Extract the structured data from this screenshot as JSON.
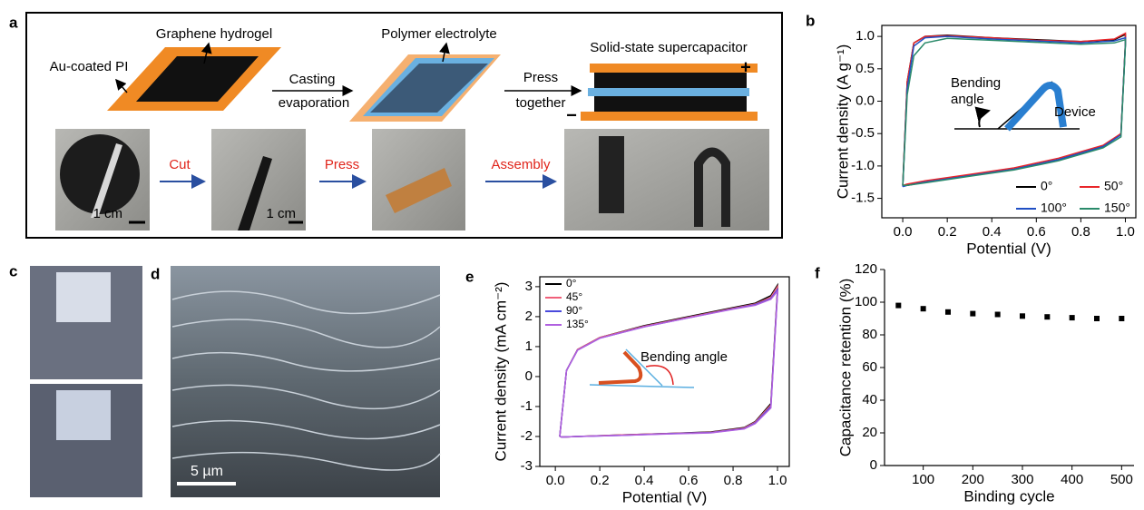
{
  "panel_labels": [
    "a",
    "b",
    "c",
    "d",
    "e",
    "f"
  ],
  "schematic": {
    "layers": [
      "Graphene hydrogel",
      "Au-coated PI",
      "Polymer electrolyte",
      "Solid-state supercapacitor"
    ],
    "steps": [
      "Casting",
      "evaporation",
      "Press",
      "together"
    ],
    "terminals": [
      "+",
      "−"
    ],
    "photo_steps": [
      "Cut",
      "Press",
      "Assembly"
    ],
    "scale_bars": [
      "1 cm",
      "1 cm"
    ]
  },
  "sem_scale_bar": "5 µm",
  "chart_data": [
    {
      "type": "line",
      "xlabel": "Potential (V)",
      "ylabel": "Current density (A g⁻¹)",
      "annotations": [
        "Bending",
        "angle",
        "Device"
      ],
      "x": [
        0,
        0.02,
        0.05,
        0.1,
        0.2,
        0.4,
        0.6,
        0.8,
        0.95,
        1.0,
        1.0,
        0.98,
        0.9,
        0.7,
        0.5,
        0.3,
        0.1,
        0.02,
        0
      ],
      "series": [
        {
          "name": "0°",
          "color": "#000000",
          "values": [
            -1.3,
            0.3,
            0.9,
            1.0,
            1.02,
            0.98,
            0.95,
            0.92,
            0.95,
            1.03,
            0.9,
            -0.5,
            -0.7,
            -0.9,
            -1.05,
            -1.15,
            -1.25,
            -1.3,
            -1.3
          ]
        },
        {
          "name": "50°",
          "color": "#e8262a",
          "values": [
            -1.3,
            0.3,
            0.9,
            1.0,
            1.01,
            0.98,
            0.94,
            0.92,
            0.96,
            1.05,
            0.9,
            -0.5,
            -0.68,
            -0.88,
            -1.03,
            -1.13,
            -1.23,
            -1.28,
            -1.3
          ]
        },
        {
          "name": "100°",
          "color": "#1f4fc4",
          "values": [
            -1.32,
            0.2,
            0.85,
            0.98,
            1.0,
            0.96,
            0.93,
            0.9,
            0.93,
            0.98,
            0.88,
            -0.52,
            -0.7,
            -0.9,
            -1.05,
            -1.15,
            -1.25,
            -1.3,
            -1.32
          ]
        },
        {
          "name": "150°",
          "color": "#2a8a6a",
          "values": [
            -1.3,
            0.1,
            0.7,
            0.9,
            0.97,
            0.94,
            0.91,
            0.88,
            0.9,
            0.95,
            0.86,
            -0.55,
            -0.72,
            -0.92,
            -1.06,
            -1.16,
            -1.26,
            -1.3,
            -1.3
          ]
        }
      ],
      "xlim": [
        -0.094,
        1.047
      ],
      "ylim": [
        -1.8,
        1.17
      ],
      "xticks": [
        {
          "value": 0,
          "label": "0.0"
        },
        0.2,
        0.4,
        0.6,
        0.8,
        {
          "value": 1,
          "label": "1.0"
        }
      ],
      "yticks": [
        -1.5,
        {
          "value": -1,
          "label": "-1.0"
        },
        -0.5,
        {
          "value": 0,
          "label": "0.0"
        },
        0.5,
        {
          "value": 1,
          "label": "1.0"
        }
      ],
      "frame": true,
      "legend": "lower right"
    },
    {
      "type": "line",
      "xlabel": "Potential (V)",
      "ylabel": "Current density (mA cm⁻²)",
      "annotations": [
        "Bending angle"
      ],
      "x": [
        0.02,
        0.05,
        0.1,
        0.2,
        0.4,
        0.6,
        0.8,
        0.9,
        0.97,
        1.0,
        1.0,
        0.97,
        0.9,
        0.85,
        0.7,
        0.5,
        0.3,
        0.1,
        0.03,
        0.02
      ],
      "series": [
        {
          "name": "0°",
          "color": "#000000",
          "values": [
            -2.0,
            0.2,
            0.9,
            1.3,
            1.7,
            2.0,
            2.3,
            2.45,
            2.7,
            3.05,
            2.9,
            -0.9,
            -1.5,
            -1.7,
            -1.85,
            -1.9,
            -1.95,
            -2.0,
            -2.02,
            -2.0
          ]
        },
        {
          "name": "45°",
          "color": "#f0607a",
          "values": [
            -2.0,
            0.2,
            0.9,
            1.3,
            1.68,
            1.98,
            2.28,
            2.42,
            2.65,
            3.0,
            2.85,
            -0.95,
            -1.52,
            -1.72,
            -1.86,
            -1.9,
            -1.95,
            -2.0,
            -2.02,
            -2.0
          ]
        },
        {
          "name": "90°",
          "color": "#4a4adc",
          "values": [
            -2.0,
            0.2,
            0.88,
            1.28,
            1.66,
            1.96,
            2.26,
            2.4,
            2.6,
            2.9,
            2.8,
            -1.0,
            -1.55,
            -1.74,
            -1.87,
            -1.91,
            -1.96,
            -2.0,
            -2.02,
            -2.0
          ]
        },
        {
          "name": "135°",
          "color": "#b060e0",
          "values": [
            -2.0,
            0.2,
            0.88,
            1.28,
            1.66,
            1.96,
            2.25,
            2.38,
            2.58,
            2.85,
            2.75,
            -1.05,
            -1.57,
            -1.75,
            -1.88,
            -1.92,
            -1.96,
            -2.0,
            -2.02,
            -2.0
          ]
        }
      ],
      "xlim": [
        -0.07,
        1.053
      ],
      "ylim": [
        -3,
        3.33
      ],
      "xticks": [
        {
          "value": 0,
          "label": "0.0"
        },
        0.2,
        0.4,
        0.6,
        0.8,
        {
          "value": 1,
          "label": "1.0"
        }
      ],
      "yticks": [
        -3,
        -2,
        -1,
        0,
        1,
        2,
        3
      ],
      "frame": true,
      "legend": "upper left"
    },
    {
      "type": "scatter",
      "xlabel": "Binding cycle",
      "ylabel": "Capacitance retention (%)",
      "x": [
        50,
        100,
        150,
        200,
        250,
        300,
        350,
        400,
        450,
        500
      ],
      "values": [
        98,
        96,
        94,
        93,
        92.5,
        91.5,
        91,
        90.5,
        90,
        90
      ],
      "color": "#000000",
      "xlim": [
        22,
        525
      ],
      "ylim": [
        0,
        120
      ],
      "xticks": [
        100,
        200,
        300,
        400,
        500
      ],
      "yticks": [
        0,
        20,
        40,
        60,
        80,
        100,
        120
      ],
      "frame": false
    }
  ]
}
